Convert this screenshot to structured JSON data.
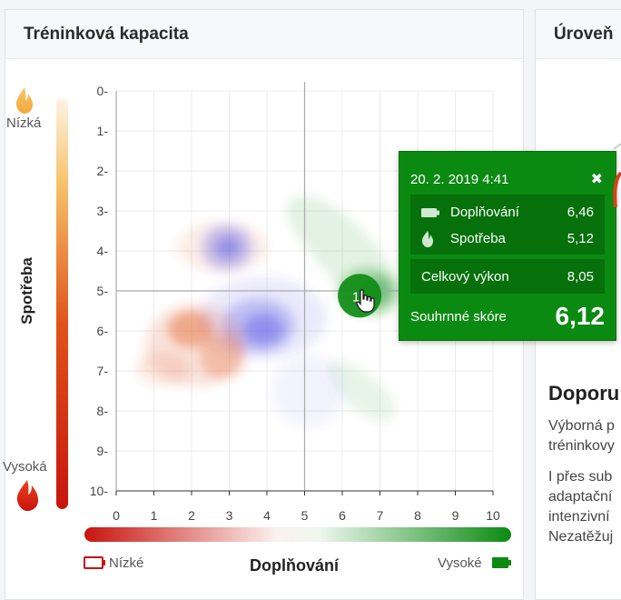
{
  "panel": {
    "title": "Tréninková kapacita"
  },
  "panel2": {
    "title": "Úroveň"
  },
  "y_axis": {
    "label": "Spotřeba",
    "low_label": "Nízká",
    "high_label": "Vysoká"
  },
  "x_axis": {
    "label": "Doplňování",
    "low_label": "Nízké",
    "high_label": "Vysoké"
  },
  "colors": {
    "green": "#0b8a12",
    "red": "#c8140e",
    "blue": "#5b5be6",
    "orange": "#f2a93b"
  },
  "chart_data": {
    "type": "scatter",
    "x": {
      "min": 0,
      "max": 10,
      "ticks": [
        "0",
        "1",
        "2",
        "3",
        "4",
        "5",
        "6",
        "7",
        "8",
        "9",
        "10"
      ]
    },
    "y": {
      "min": 0,
      "max": 10,
      "inverted": true,
      "ticks": [
        "0-",
        "1-",
        "2-",
        "3-",
        "4-",
        "5-",
        "6-",
        "7-",
        "8-",
        "9-",
        "10-"
      ]
    },
    "grid": true,
    "crosshair": {
      "x": 5,
      "y": 5
    },
    "point": {
      "label": "1",
      "x": 6.46,
      "y": 5.12
    }
  },
  "tooltip": {
    "date": "20. 2. 2019 4:41",
    "close": "✖",
    "rows": [
      {
        "label": "Doplňování",
        "value": "6,46",
        "icon": "battery-icon"
      },
      {
        "label": "Spotřeba",
        "value": "5,12",
        "icon": "flame-icon"
      }
    ],
    "total": {
      "label": "Celkový výkon",
      "value": "8,05"
    },
    "score": {
      "label": "Souhrnné skóre",
      "value": "6,12"
    }
  },
  "right": {
    "heading": "Doporu",
    "p1": [
      "Výborná p",
      "tréninkovy"
    ],
    "p2": [
      "I přes sub",
      "adaptační",
      "intenzivní",
      "Nezatěžuj"
    ]
  }
}
